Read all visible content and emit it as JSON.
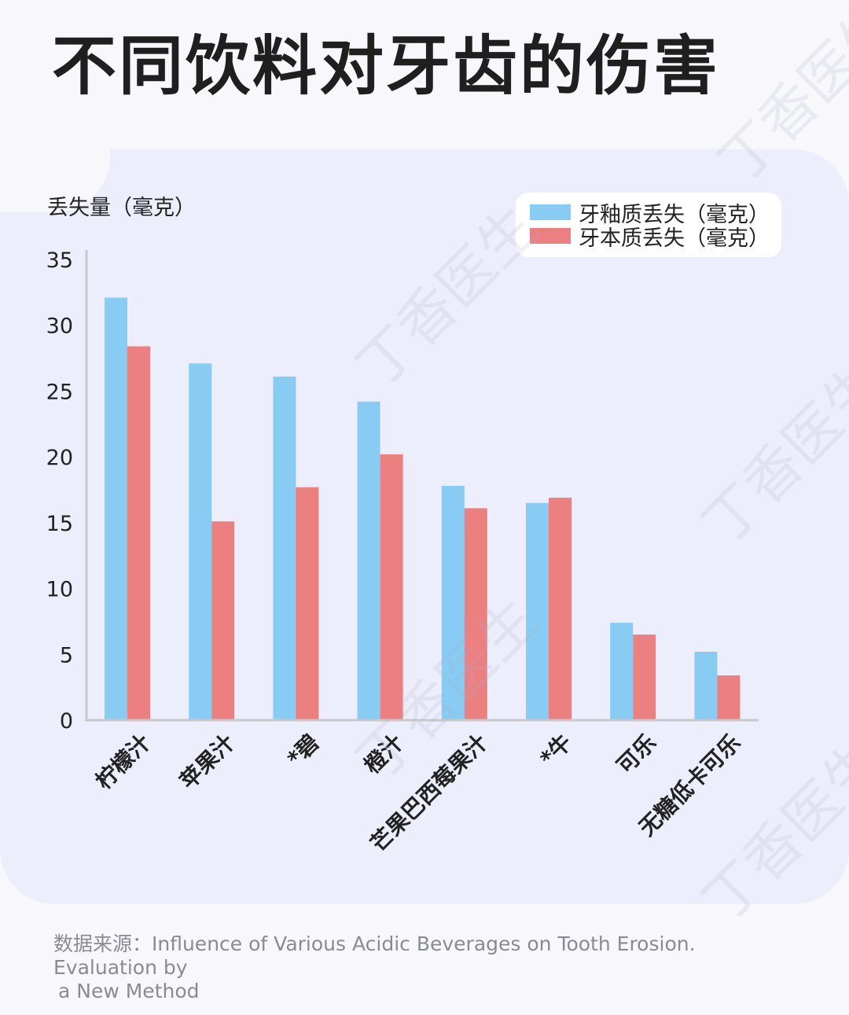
{
  "title": "不同饮料对牙齿的伤害",
  "ylabel": "丢失量（毫克）",
  "source_lines": [
    "数据来源：Influence of Various Acidic Beverages on Tooth Erosion. Evaluation by",
    "a New Method"
  ],
  "watermark": "丁香医生",
  "colors": {
    "enamel": "#88ccf3",
    "dentin": "#ec8080",
    "axis": "#c8c8cc",
    "text": "#222222"
  },
  "chart_data": {
    "type": "bar",
    "categories": [
      "柠檬汁",
      "苹果汁",
      "*碧",
      "橙汁",
      "芒果巴西莓果汁",
      "*牛",
      "可乐",
      "无糖低卡可乐"
    ],
    "series": [
      {
        "name": "牙釉质丢失（毫克）",
        "values": [
          32.1,
          27.1,
          26.1,
          24.2,
          17.8,
          16.5,
          7.4,
          5.2
        ]
      },
      {
        "name": "牙本质丢失（毫克）",
        "values": [
          28.4,
          15.1,
          17.7,
          20.2,
          16.1,
          16.9,
          6.5,
          3.4
        ]
      }
    ],
    "ylabel": "丢失量（毫克）",
    "ylim": [
      0,
      35
    ],
    "yticks": [
      0,
      5,
      10,
      15,
      20,
      25,
      30,
      35
    ],
    "legend_position": "top-right",
    "grid": false
  }
}
